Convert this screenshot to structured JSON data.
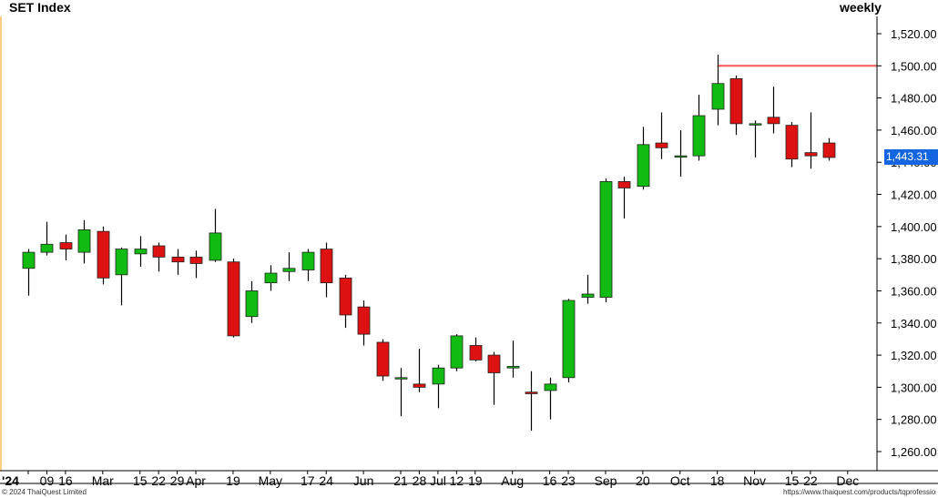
{
  "header": {
    "title": "SET Index",
    "period": "weekly"
  },
  "footer": {
    "copyright": "© 2024 ThaiQuest Limited",
    "url": "https://www.thaiquest.com/products/tqprofessiona"
  },
  "last_price_label": "1,443.31",
  "colors": {
    "up": "#11bb11",
    "down": "#dd1111",
    "wick": "#000000",
    "resistance_line": "#ff5555",
    "last_price_bg": "#1565e0",
    "axis": "#000000",
    "edge": "#ff9900"
  },
  "chart_data": {
    "type": "candlestick",
    "title": "SET Index",
    "period": "weekly",
    "ylim": [
      1250,
      1530
    ],
    "y_ticks": [
      1260,
      1280,
      1300,
      1320,
      1340,
      1360,
      1380,
      1400,
      1420,
      1440,
      1460,
      1480,
      1500,
      1520
    ],
    "y_tick_labels": [
      "1,260.00",
      "1,280.00",
      "1,300.00",
      "1,320.00",
      "1,340.00",
      "1,360.00",
      "1,380.00",
      "1,400.00",
      "1,420.00",
      "1,440.00",
      "1,460.00",
      "1,480.00",
      "1,500.00",
      "1,520.00"
    ],
    "x_tick_labels": [
      {
        "label": "'24",
        "week": 0
      },
      {
        "label": "09",
        "week": 1
      },
      {
        "label": "16",
        "week": 2
      },
      {
        "label": "Mar",
        "week": 4
      },
      {
        "label": "15",
        "week": 6
      },
      {
        "label": "22",
        "week": 7
      },
      {
        "label": "29",
        "week": 8
      },
      {
        "label": "Apr",
        "week": 9
      },
      {
        "label": "19",
        "week": 11
      },
      {
        "label": "May",
        "week": 13
      },
      {
        "label": "17",
        "week": 15
      },
      {
        "label": "24",
        "week": 16
      },
      {
        "label": "Jun",
        "week": 18
      },
      {
        "label": "21",
        "week": 20
      },
      {
        "label": "28",
        "week": 21
      },
      {
        "label": "Jul",
        "week": 22
      },
      {
        "label": "12",
        "week": 23
      },
      {
        "label": "19",
        "week": 24
      },
      {
        "label": "Aug",
        "week": 26
      },
      {
        "label": "16",
        "week": 28
      },
      {
        "label": "23",
        "week": 29
      },
      {
        "label": "Sep",
        "week": 31
      },
      {
        "label": "20",
        "week": 33
      },
      {
        "label": "Oct",
        "week": 35
      },
      {
        "label": "18",
        "week": 37
      },
      {
        "label": "Nov",
        "week": 39
      },
      {
        "label": "15",
        "week": 41
      },
      {
        "label": "22",
        "week": 42
      },
      {
        "label": "Dec",
        "week": 44
      }
    ],
    "resistance_level": 1500,
    "last_price": 1443.31,
    "candles": [
      {
        "open": 1374,
        "high": 1386,
        "low": 1357,
        "close": 1384
      },
      {
        "open": 1384,
        "high": 1403,
        "low": 1382,
        "close": 1389
      },
      {
        "open": 1390,
        "high": 1395,
        "low": 1379,
        "close": 1386
      },
      {
        "open": 1384,
        "high": 1404,
        "low": 1377,
        "close": 1398
      },
      {
        "open": 1397,
        "high": 1400,
        "low": 1364,
        "close": 1368
      },
      {
        "open": 1370,
        "high": 1387,
        "low": 1351,
        "close": 1386
      },
      {
        "open": 1383,
        "high": 1394,
        "low": 1375,
        "close": 1386
      },
      {
        "open": 1388,
        "high": 1390,
        "low": 1372,
        "close": 1381
      },
      {
        "open": 1381,
        "high": 1386,
        "low": 1370,
        "close": 1378
      },
      {
        "open": 1381,
        "high": 1385,
        "low": 1368,
        "close": 1377
      },
      {
        "open": 1379,
        "high": 1411,
        "low": 1378,
        "close": 1396
      },
      {
        "open": 1378,
        "high": 1380,
        "low": 1331,
        "close": 1332
      },
      {
        "open": 1344,
        "high": 1366,
        "low": 1340,
        "close": 1360
      },
      {
        "open": 1365,
        "high": 1376,
        "low": 1360,
        "close": 1371
      },
      {
        "open": 1372,
        "high": 1384,
        "low": 1366,
        "close": 1374
      },
      {
        "open": 1373,
        "high": 1386,
        "low": 1366,
        "close": 1384
      },
      {
        "open": 1386,
        "high": 1390,
        "low": 1356,
        "close": 1365
      },
      {
        "open": 1368,
        "high": 1370,
        "low": 1337,
        "close": 1345
      },
      {
        "open": 1350,
        "high": 1354,
        "low": 1326,
        "close": 1333
      },
      {
        "open": 1328,
        "high": 1330,
        "low": 1304,
        "close": 1307
      },
      {
        "open": 1306,
        "high": 1312,
        "low": 1282,
        "close": 1306
      },
      {
        "open": 1302,
        "high": 1324,
        "low": 1297,
        "close": 1300
      },
      {
        "open": 1302,
        "high": 1314,
        "low": 1287,
        "close": 1312
      },
      {
        "open": 1312,
        "high": 1333,
        "low": 1310,
        "close": 1332
      },
      {
        "open": 1326,
        "high": 1331,
        "low": 1316,
        "close": 1317
      },
      {
        "open": 1320,
        "high": 1322,
        "low": 1289,
        "close": 1309
      },
      {
        "open": 1312,
        "high": 1329,
        "low": 1306,
        "close": 1313
      },
      {
        "open": 1297,
        "high": 1310,
        "low": 1273,
        "close": 1296
      },
      {
        "open": 1298,
        "high": 1306,
        "low": 1280,
        "close": 1302
      },
      {
        "open": 1306,
        "high": 1355,
        "low": 1303,
        "close": 1354
      },
      {
        "open": 1356,
        "high": 1370,
        "low": 1352,
        "close": 1358
      },
      {
        "open": 1356,
        "high": 1430,
        "low": 1353,
        "close": 1428
      },
      {
        "open": 1428,
        "high": 1431,
        "low": 1405,
        "close": 1424
      },
      {
        "open": 1425,
        "high": 1462,
        "low": 1423,
        "close": 1451
      },
      {
        "open": 1452,
        "high": 1471,
        "low": 1442,
        "close": 1449
      },
      {
        "open": 1444,
        "high": 1460,
        "low": 1431,
        "close": 1444
      },
      {
        "open": 1444,
        "high": 1482,
        "low": 1441,
        "close": 1469
      },
      {
        "open": 1473,
        "high": 1507,
        "low": 1463,
        "close": 1489
      },
      {
        "open": 1492,
        "high": 1494,
        "low": 1457,
        "close": 1464
      },
      {
        "open": 1464,
        "high": 1466,
        "low": 1443,
        "close": 1464
      },
      {
        "open": 1468,
        "high": 1487,
        "low": 1458,
        "close": 1464
      },
      {
        "open": 1463,
        "high": 1465,
        "low": 1437,
        "close": 1442
      },
      {
        "open": 1446,
        "high": 1471,
        "low": 1436,
        "close": 1444
      },
      {
        "open": 1452,
        "high": 1455,
        "low": 1441,
        "close": 1443
      }
    ]
  }
}
